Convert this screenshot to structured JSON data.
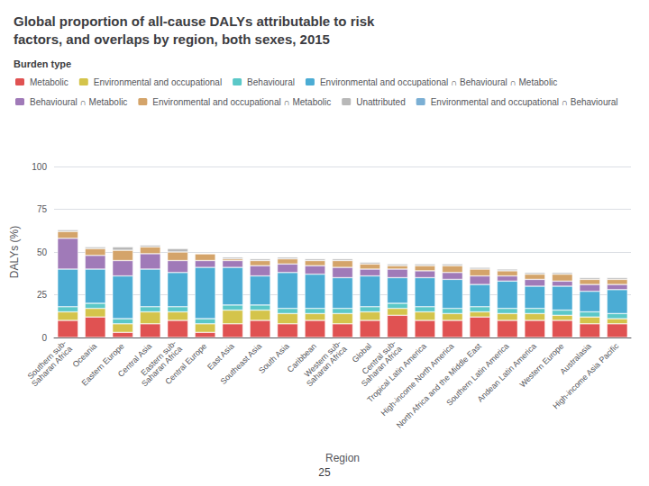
{
  "chart_data": {
    "type": "bar",
    "title": "Global proportion of all-cause DALYs attributable to risk\nfactors, and overlaps by region, both sexes, 2015",
    "xlabel": "Region",
    "ylabel": "DALYs (%)",
    "stacked": true,
    "grid": true,
    "legend": "top",
    "legend_title": "Burden type",
    "annotations": [
      "25"
    ],
    "ylim": [
      0,
      100
    ],
    "yticks": [
      0,
      25,
      50,
      75,
      100
    ],
    "categories": [
      "Southern sub-\nSaharan Africa",
      "Oceania",
      "Eastern Europe",
      "Central Asia",
      "Eastern sub-\nSaharan Africa",
      "Central Europe",
      "East Asia",
      "Southeast Asia",
      "South Asia",
      "Caribbean",
      "Western sub-\nSaharan Africa",
      "Global",
      "Central sub-\nSaharan Africa",
      "Tropical Latin America",
      "High-income North America",
      "North Africa and the Middle East",
      "Southern Latin America",
      "Andean Latin America",
      "Western Europe",
      "Australasia",
      "High-income Asia Pacific"
    ],
    "series": [
      {
        "name": "Metabolic",
        "color": "#e05252",
        "values": [
          10,
          12,
          3,
          8,
          10,
          3,
          8,
          10,
          8,
          10,
          8,
          10,
          13,
          10,
          10,
          12,
          10,
          10,
          10,
          8,
          8
        ]
      },
      {
        "name": "Environmental and occupational",
        "color": "#d4c44b",
        "values": [
          5,
          5,
          5,
          7,
          5,
          5,
          8,
          6,
          6,
          4,
          6,
          5,
          4,
          5,
          4,
          3,
          4,
          4,
          3,
          4,
          3
        ]
      },
      {
        "name": "Behavioural",
        "color": "#5bc8c8",
        "values": [
          3,
          3,
          3,
          3,
          3,
          3,
          3,
          3,
          3,
          3,
          3,
          3,
          3,
          3,
          3,
          3,
          3,
          3,
          3,
          3,
          3
        ]
      },
      {
        "name": "Environmental and occupational ∩ Behavioural ∩ Metabolic",
        "color": "#4bacd4",
        "values": [
          22,
          20,
          25,
          22,
          20,
          30,
          22,
          17,
          21,
          20,
          18,
          18,
          15,
          17,
          17,
          13,
          16,
          13,
          14,
          12,
          14
        ]
      },
      {
        "name": "Behavioural ∩ Metabolic",
        "color": "#a07ab8",
        "values": [
          18,
          8,
          9,
          9,
          7,
          4,
          4,
          6,
          5,
          5,
          6,
          4,
          5,
          4,
          4,
          5,
          3,
          4,
          3,
          4,
          3
        ]
      },
      {
        "name": "Environmental and occupational ∩ Metabolic",
        "color": "#d4a46a",
        "values": [
          4,
          4,
          6,
          4,
          5,
          4,
          1,
          3,
          3,
          3,
          4,
          3,
          2,
          3,
          4,
          4,
          3,
          3,
          4,
          3,
          3
        ]
      },
      {
        "name": "Unattributed",
        "color": "#b8b8b8",
        "values": [
          1,
          1,
          2,
          1,
          2,
          0,
          1,
          1,
          1,
          1,
          1,
          1,
          1,
          1,
          1,
          1,
          1,
          1,
          1,
          1,
          1
        ]
      },
      {
        "name": "Environmental and occupational ∩ Behavioural",
        "color": "#7bafd4",
        "values": [
          null,
          null,
          null,
          null,
          null,
          null,
          null,
          null,
          null,
          null,
          null,
          null,
          null,
          null,
          null,
          null,
          null,
          null,
          null,
          null,
          null
        ]
      }
    ]
  }
}
